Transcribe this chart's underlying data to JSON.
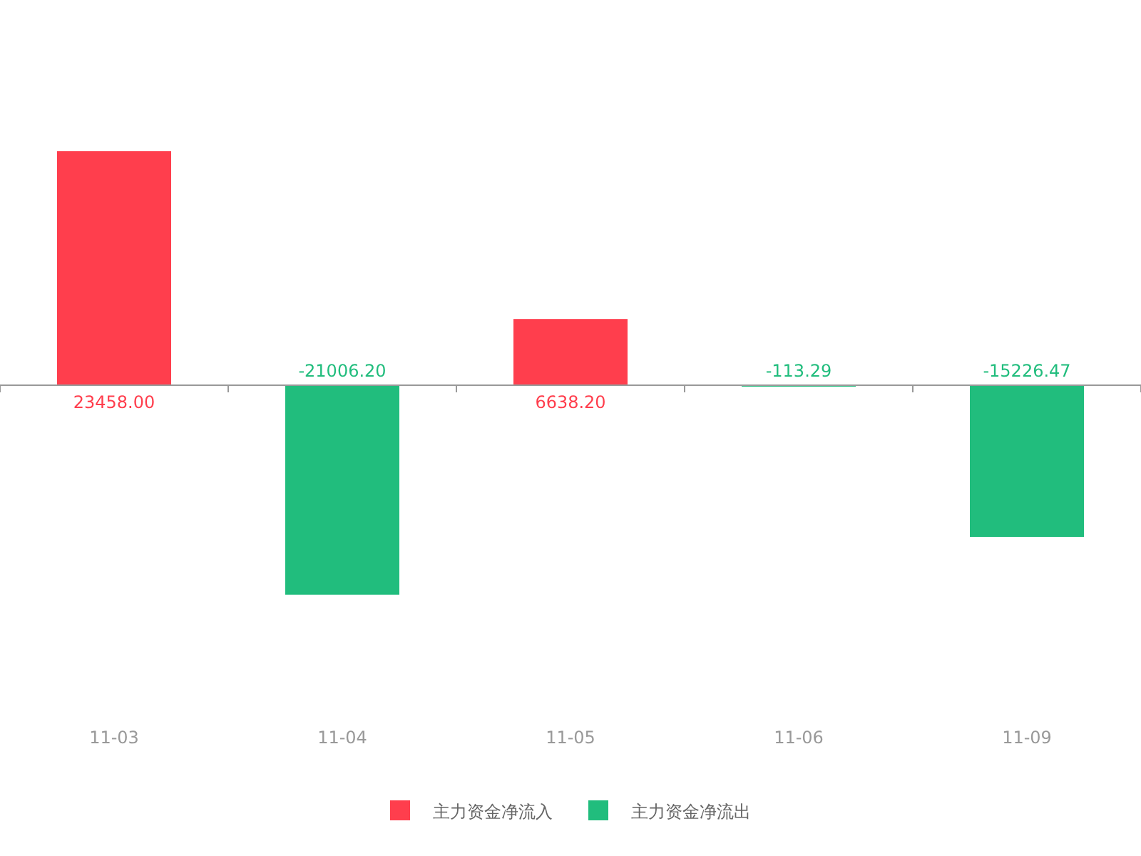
{
  "chart_data": {
    "type": "bar",
    "stacked": true,
    "categories": [
      "11-03",
      "11-04",
      "11-05",
      "11-06",
      "11-09"
    ],
    "series": [
      {
        "name": "主力资金净流入",
        "color": "#ff3e4d",
        "values": [
          23458.0,
          null,
          6638.2,
          null,
          null
        ],
        "value_labels": [
          "23458.00",
          null,
          "6638.20",
          null,
          null
        ]
      },
      {
        "name": "主力资金净流出",
        "color": "#21bd7d",
        "values": [
          null,
          -21006.2,
          null,
          -113.29,
          -15226.47
        ],
        "value_labels": [
          null,
          "-21006.20",
          null,
          "-113.29",
          "-15226.47"
        ]
      }
    ],
    "legend": "bottom"
  }
}
